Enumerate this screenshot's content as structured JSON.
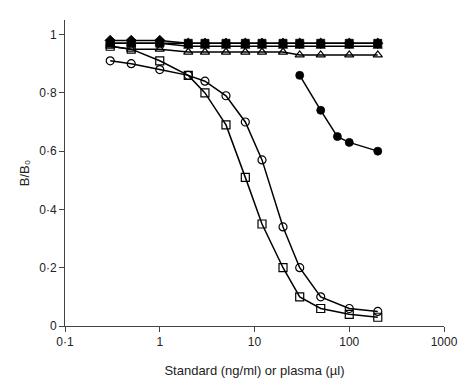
{
  "chart_data": {
    "type": "line",
    "xlabel": "Standard (ng/ml) or plasma (µl)",
    "ylabel": "B/B₀",
    "log": "x",
    "grid": false,
    "xlim": [
      0.1,
      1000
    ],
    "ylim": [
      0,
      1.05
    ],
    "xticks": [
      {
        "value": 0.1,
        "label": "0·1"
      },
      1,
      10,
      100,
      1000
    ],
    "yticks": [
      0,
      {
        "value": 0.2,
        "label": "0·2"
      },
      {
        "value": 0.4,
        "label": "0·4"
      },
      {
        "value": 0.6,
        "label": "0·6"
      },
      {
        "value": 0.8,
        "label": "0·8"
      },
      1
    ],
    "series": [
      {
        "x": [
          0.3,
          0.5,
          1.0,
          2.0,
          3.0,
          5.0,
          8.0,
          12.0,
          20.0,
          30.0,
          50.0,
          100.0,
          200.0
        ],
        "values": [
          0.91,
          0.9,
          0.88,
          0.86,
          0.84,
          0.79,
          0.7,
          0.57,
          0.34,
          0.2,
          0.1,
          0.06,
          0.05
        ],
        "marker": "circle-open",
        "color": "#000000"
      },
      {
        "x": [
          0.3,
          0.5,
          1.0,
          2.0,
          3.0,
          5.0,
          8.0,
          12.0,
          20.0,
          30.0,
          50.0,
          100.0,
          200.0
        ],
        "values": [
          0.96,
          0.95,
          0.91,
          0.86,
          0.8,
          0.69,
          0.51,
          0.35,
          0.2,
          0.1,
          0.06,
          0.04,
          0.03
        ],
        "marker": "square-open",
        "color": "#000000"
      },
      {
        "x": [
          30.0,
          50.0,
          75.0,
          100.0,
          200.0
        ],
        "values": [
          0.86,
          0.74,
          0.65,
          0.63,
          0.6
        ],
        "marker": "circle",
        "color": "#000000"
      },
      {
        "x": [
          0.3,
          0.5,
          1.0,
          2.0,
          3.0,
          5.0,
          8.0,
          12.0,
          20.0,
          30.0,
          50.0,
          100.0,
          200.0
        ],
        "values": [
          0.97,
          0.97,
          0.97,
          0.97,
          0.97,
          0.97,
          0.97,
          0.97,
          0.97,
          0.97,
          0.97,
          0.97,
          0.97
        ],
        "marker": "square",
        "color": "#000000"
      },
      {
        "x": [
          0.3,
          0.5,
          1.0,
          2.0,
          3.0,
          5.0,
          8.0,
          12.0,
          20.0,
          30.0,
          50.0,
          100.0,
          200.0
        ],
        "values": [
          0.97,
          0.97,
          0.97,
          0.96,
          0.96,
          0.96,
          0.96,
          0.96,
          0.96,
          0.96,
          0.96,
          0.96,
          0.96
        ],
        "marker": "triangle-up",
        "color": "#000000"
      },
      {
        "x": [
          0.3,
          0.5,
          1.0,
          2.0,
          3.0,
          5.0,
          8.0,
          12.0,
          20.0,
          30.0,
          50.0,
          100.0,
          200.0
        ],
        "values": [
          0.96,
          0.95,
          0.95,
          0.94,
          0.94,
          0.94,
          0.94,
          0.94,
          0.94,
          0.93,
          0.93,
          0.93,
          0.93
        ],
        "marker": "triangle-up-open",
        "color": "#000000"
      },
      {
        "x": [
          0.3,
          0.5,
          1.0,
          2.0,
          3.0,
          5.0,
          8.0,
          12.0,
          20.0,
          30.0,
          50.0,
          100.0,
          200.0
        ],
        "values": [
          0.98,
          0.98,
          0.98,
          0.97,
          0.97,
          0.97,
          0.97,
          0.97,
          0.97,
          0.97,
          0.97,
          0.97,
          0.97
        ],
        "marker": "diamond",
        "color": "#000000"
      }
    ]
  }
}
